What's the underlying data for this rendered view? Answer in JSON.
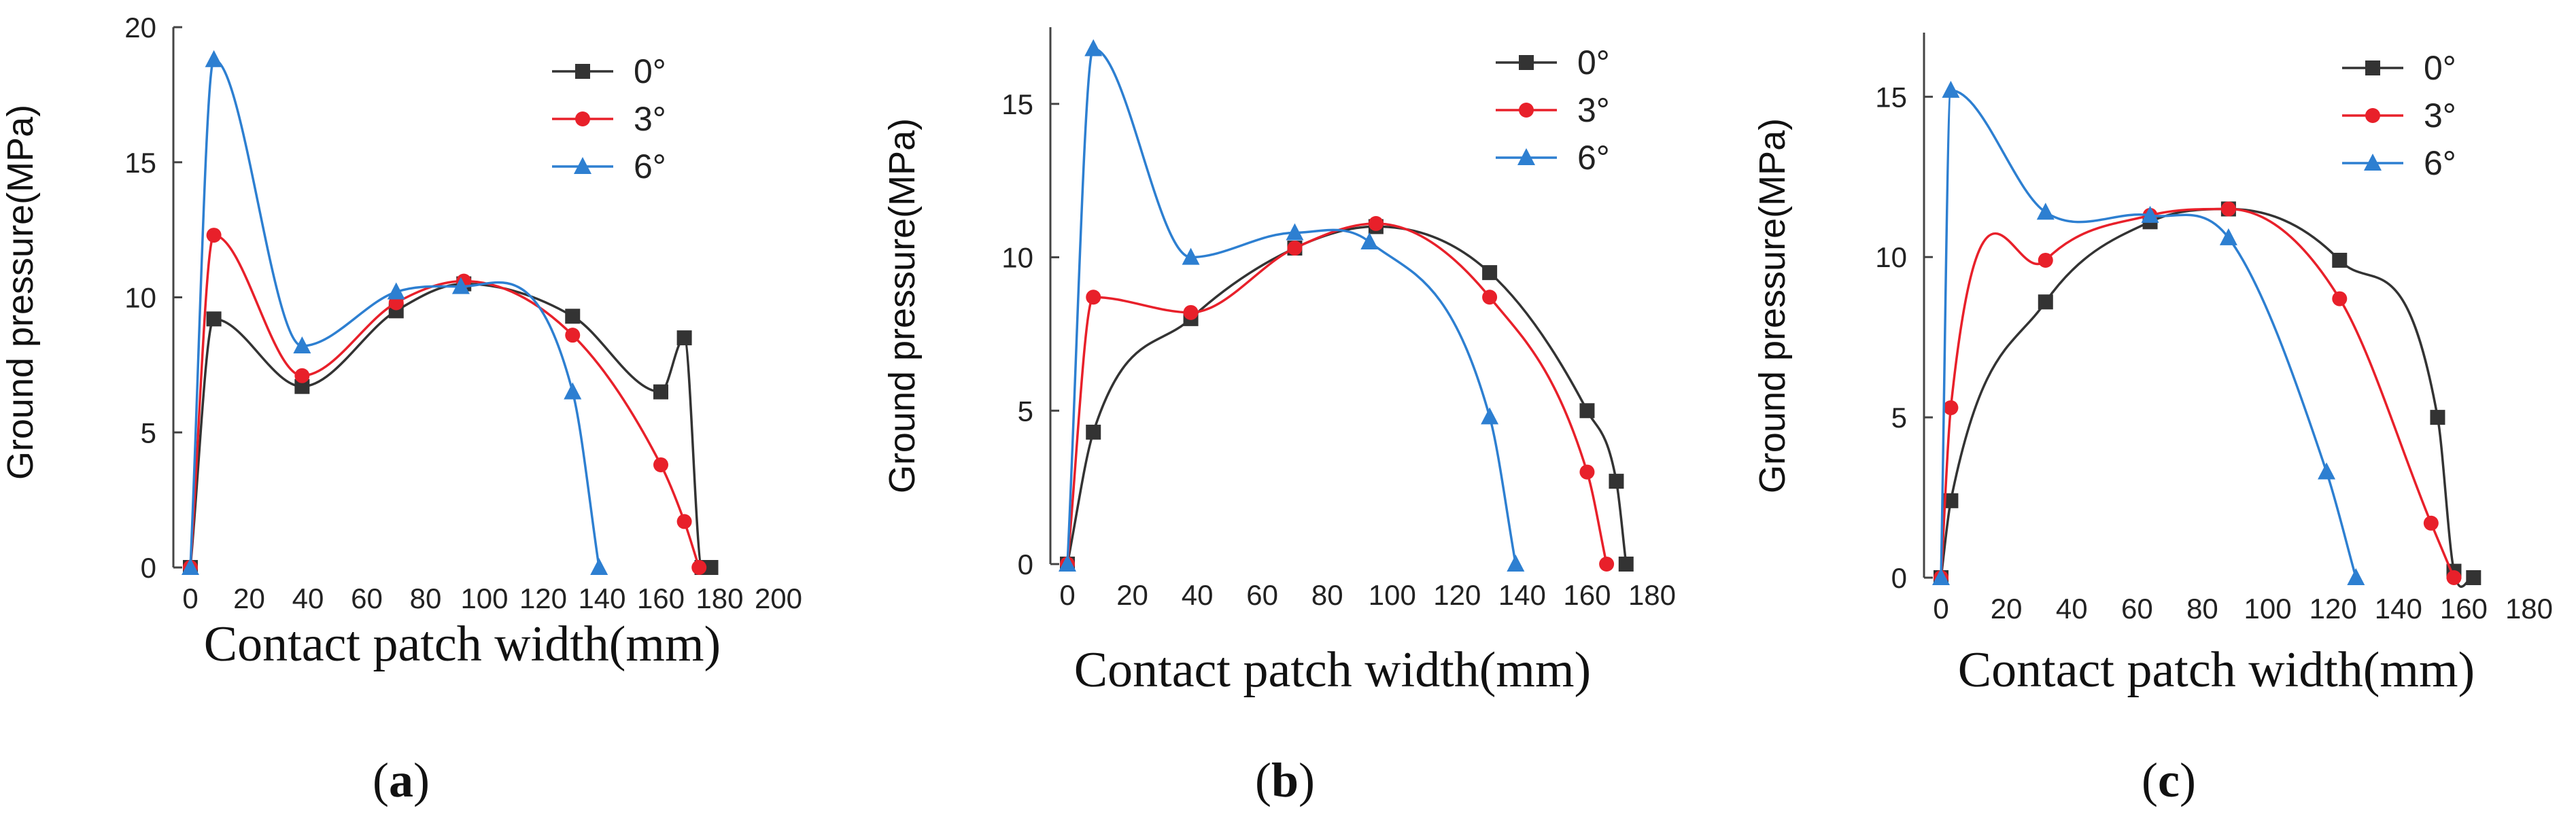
{
  "colors": {
    "0°": "#333333",
    "3°": "#e8202a",
    "6°": "#2d7fd1"
  },
  "markers": {
    "0°": "square",
    "3°": "circle",
    "6°": "triangle"
  },
  "chart_data": [
    {
      "type": "line",
      "panel": "a",
      "caption": "a",
      "xlabel": "Contact patch width(mm)",
      "ylabel": "Ground pressure(MPa)",
      "xlim": [
        0,
        200
      ],
      "ylim": [
        0,
        20
      ],
      "xticks": [
        0,
        20,
        40,
        60,
        80,
        100,
        120,
        140,
        160,
        180,
        200
      ],
      "yticks": [
        0,
        5,
        10,
        15,
        20
      ],
      "legend_position": "top-right",
      "series": [
        {
          "name": "0°",
          "points": [
            [
              0,
              0
            ],
            [
              8,
              9.2
            ],
            [
              38,
              6.7
            ],
            [
              70,
              9.5
            ],
            [
              93,
              10.5
            ],
            [
              130,
              9.3
            ],
            [
              160,
              6.5
            ],
            [
              168,
              8.5
            ],
            [
              174,
              0
            ],
            [
              177,
              0
            ]
          ]
        },
        {
          "name": "3°",
          "points": [
            [
              0,
              0
            ],
            [
              8,
              12.3
            ],
            [
              38,
              7.1
            ],
            [
              70,
              9.8
            ],
            [
              93,
              10.6
            ],
            [
              130,
              8.6
            ],
            [
              160,
              3.8
            ],
            [
              168,
              1.7
            ],
            [
              173,
              0
            ]
          ]
        },
        {
          "name": "6°",
          "points": [
            [
              0,
              0
            ],
            [
              8,
              18.8
            ],
            [
              38,
              8.2
            ],
            [
              70,
              10.2
            ],
            [
              92,
              10.4
            ],
            [
              130,
              6.5
            ],
            [
              139,
              0
            ]
          ]
        }
      ]
    },
    {
      "type": "line",
      "panel": "b",
      "caption": "b",
      "xlabel": "Contact patch width(mm)",
      "ylabel": "Ground pressure(MPa)",
      "xlim": [
        0,
        180
      ],
      "ylim": [
        0,
        17.5
      ],
      "xticks": [
        0,
        20,
        40,
        60,
        80,
        100,
        120,
        140,
        160,
        180
      ],
      "yticks": [
        0,
        5,
        10,
        15
      ],
      "legend_position": "top-right",
      "series": [
        {
          "name": "0°",
          "points": [
            [
              0,
              0
            ],
            [
              8,
              4.3
            ],
            [
              38,
              8
            ],
            [
              70,
              10.3
            ],
            [
              95,
              11
            ],
            [
              130,
              9.5
            ],
            [
              160,
              5
            ],
            [
              169,
              2.7
            ],
            [
              172,
              0
            ]
          ]
        },
        {
          "name": "3°",
          "points": [
            [
              0,
              0
            ],
            [
              8,
              8.7
            ],
            [
              38,
              8.2
            ],
            [
              70,
              10.3
            ],
            [
              95,
              11.1
            ],
            [
              130,
              8.7
            ],
            [
              160,
              3
            ],
            [
              166,
              0
            ]
          ]
        },
        {
          "name": "6°",
          "points": [
            [
              0,
              0
            ],
            [
              8,
              16.8
            ],
            [
              38,
              10
            ],
            [
              70,
              10.8
            ],
            [
              93,
              10.5
            ],
            [
              130,
              4.8
            ],
            [
              138,
              0
            ]
          ]
        }
      ]
    },
    {
      "type": "line",
      "panel": "c",
      "caption": "c",
      "xlabel": "Contact patch width(mm)",
      "ylabel": "Ground pressure(MPa)",
      "xlim": [
        0,
        180
      ],
      "ylim": [
        0,
        17
      ],
      "xticks": [
        0,
        20,
        40,
        60,
        80,
        100,
        120,
        140,
        160,
        180
      ],
      "yticks": [
        0,
        5,
        10,
        15
      ],
      "legend_position": "top-right",
      "series": [
        {
          "name": "0°",
          "points": [
            [
              0,
              0
            ],
            [
              3,
              2.4
            ],
            [
              32,
              8.6
            ],
            [
              64,
              11.1
            ],
            [
              88,
              11.5
            ],
            [
              122,
              9.9
            ],
            [
              152,
              5
            ],
            [
              157,
              0.2
            ],
            [
              163,
              0
            ]
          ]
        },
        {
          "name": "3°",
          "points": [
            [
              0,
              0
            ],
            [
              3,
              5.3
            ],
            [
              32,
              9.9
            ],
            [
              64,
              11.3
            ],
            [
              88,
              11.5
            ],
            [
              122,
              8.7
            ],
            [
              150,
              1.7
            ],
            [
              157,
              0
            ]
          ]
        },
        {
          "name": "6°",
          "points": [
            [
              0,
              0
            ],
            [
              3,
              15.2
            ],
            [
              32,
              11.4
            ],
            [
              64,
              11.3
            ],
            [
              88,
              10.6
            ],
            [
              118,
              3.3
            ],
            [
              127,
              0
            ]
          ]
        }
      ]
    }
  ]
}
